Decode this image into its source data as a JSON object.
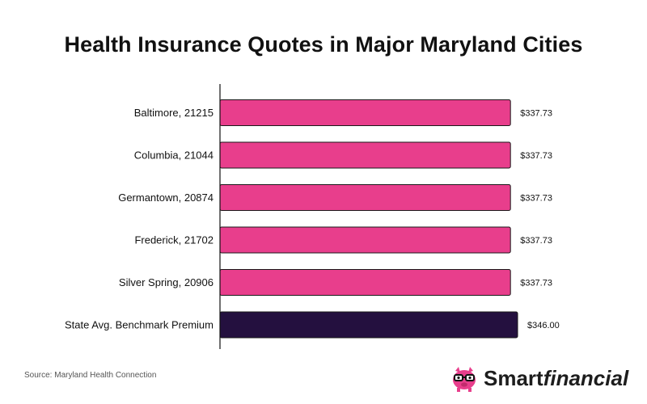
{
  "chart_data": {
    "type": "bar",
    "orientation": "horizontal",
    "title": "Health Insurance Quotes in Major Maryland Cities",
    "xlabel": "",
    "ylabel": "",
    "xlim": [
      0,
      346
    ],
    "grid": false,
    "categories": [
      "Baltimore, 21215",
      "Columbia, 21044",
      "Germantown, 20874",
      "Frederick, 21702",
      "Silver Spring, 20906",
      "State Avg. Benchmark Premium"
    ],
    "values": [
      337.73,
      337.73,
      337.73,
      337.73,
      337.73,
      346.0
    ],
    "value_labels": [
      "$337.73",
      "$337.73",
      "$337.73",
      "$337.73",
      "$337.73",
      "$346.00"
    ],
    "colors": [
      "#e83e8c",
      "#e83e8c",
      "#e83e8c",
      "#e83e8c",
      "#e83e8c",
      "#24103f"
    ]
  },
  "source": "Source: Maryland Health Connection",
  "brand": {
    "name_part1": "Smart",
    "name_part2": "financial"
  },
  "colors": {
    "accent": "#e83e8c",
    "benchmark": "#24103f",
    "bar_outline": "#1a1a1a"
  }
}
